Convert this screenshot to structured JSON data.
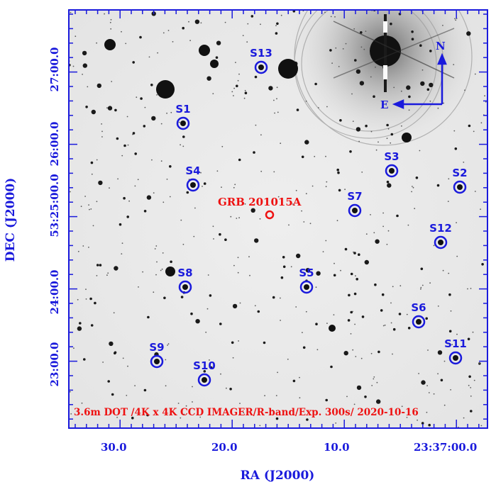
{
  "axes": {
    "xlabel": "RA (J2000)",
    "ylabel": "DEC (J2000)",
    "x_ticks": [
      "30.0",
      "20.0",
      "10.0",
      "23:37:00.0"
    ],
    "y_ticks": [
      "23:00.0",
      "24:00.0",
      "53:25:00.0",
      "26:00.0",
      "27:00.0"
    ]
  },
  "target": {
    "label": "GRB 201015A",
    "color": "#ee1111"
  },
  "sources": [
    {
      "label": "S1"
    },
    {
      "label": "S2"
    },
    {
      "label": "S3"
    },
    {
      "label": "S4"
    },
    {
      "label": "S5"
    },
    {
      "label": "S6"
    },
    {
      "label": "S7"
    },
    {
      "label": "S8"
    },
    {
      "label": "S9"
    },
    {
      "label": "S10"
    },
    {
      "label": "S11"
    },
    {
      "label": "S12"
    },
    {
      "label": "S13"
    }
  ],
  "compass": {
    "north": "N",
    "east": "E"
  },
  "caption": "3.6m DOT /4K x 4K CCD IMAGER/R-band/Exp. 300s/ 2020-10-16",
  "colors": {
    "axis": "#1a1adc",
    "marker": "#1a1adc",
    "target": "#ee1111",
    "caption": "#ee1111"
  }
}
